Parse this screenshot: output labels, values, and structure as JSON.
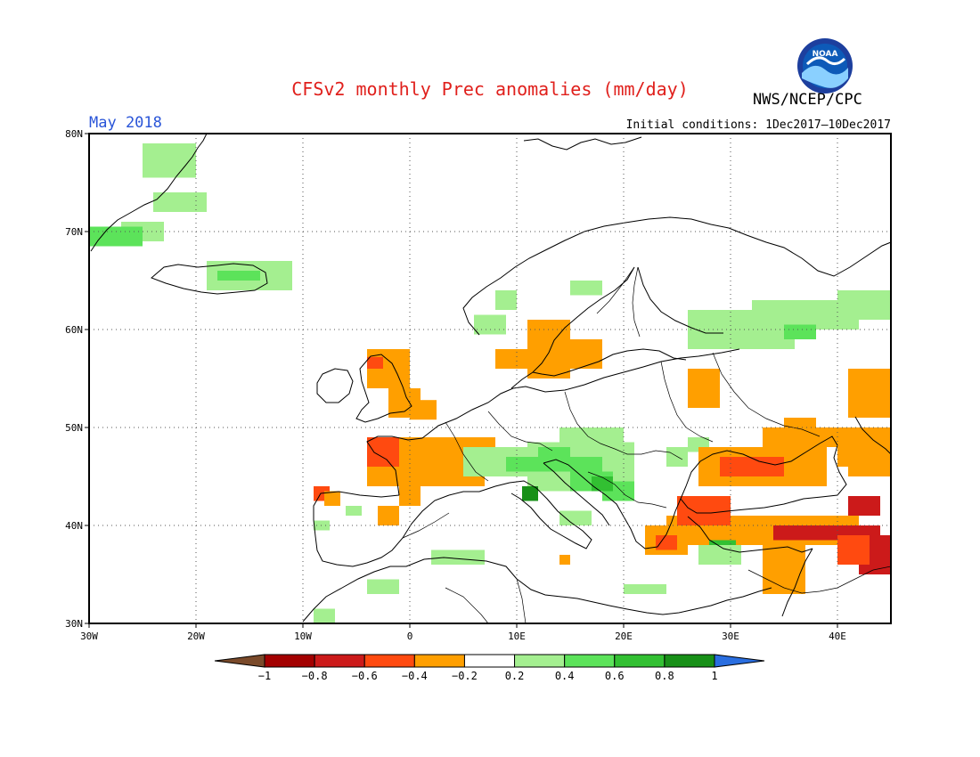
{
  "header": {
    "title": "CFSv2 monthly Prec anomalies (mm/day)",
    "agency": "NWS/NCEP/CPC",
    "period": "May 2018",
    "initial_conditions": "Initial conditions: 1Dec2017–10Dec2017",
    "logo_text": "NOAA"
  },
  "map": {
    "lon_range": [
      -30,
      45
    ],
    "lat_range": [
      30,
      80
    ],
    "lon_ticks": [
      {
        "v": -30,
        "label": "30W"
      },
      {
        "v": -20,
        "label": "20W"
      },
      {
        "v": -10,
        "label": "10W"
      },
      {
        "v": 0,
        "label": "0"
      },
      {
        "v": 10,
        "label": "10E"
      },
      {
        "v": 20,
        "label": "20E"
      },
      {
        "v": 30,
        "label": "30E"
      },
      {
        "v": 40,
        "label": "40E"
      }
    ],
    "lat_ticks": [
      {
        "v": 30,
        "label": "30N"
      },
      {
        "v": 40,
        "label": "40N"
      },
      {
        "v": 50,
        "label": "50N"
      },
      {
        "v": 60,
        "label": "60N"
      },
      {
        "v": 70,
        "label": "70N"
      },
      {
        "v": 80,
        "label": "80N"
      }
    ],
    "gridlines": true
  },
  "colorbar": {
    "colors": [
      "#7a4a2a",
      "#a30000",
      "#cc1a1a",
      "#ff4a10",
      "#ff9f00",
      "#ffffff",
      "#a4ef90",
      "#5ce35a",
      "#32c032",
      "#189018",
      "#2a6ee0"
    ],
    "labels": [
      "−1",
      "−0.8",
      "−0.6",
      "−0.4",
      "−0.2",
      "0.2",
      "0.4",
      "0.6",
      "0.8",
      "1"
    ]
  },
  "chart_data": {
    "type": "heatmap",
    "title": "CFSv2 monthly Prec anomalies (mm/day)",
    "cell_units": "degrees lon/lat, 2.5 x 2",
    "anomaly_regions": [
      {
        "name": "greenland-e",
        "level": 0.3,
        "cells": [
          [
            -25,
            75.5,
            5,
            3.5
          ],
          [
            -24,
            72,
            5,
            2
          ],
          [
            -27,
            69,
            4,
            2
          ]
        ]
      },
      {
        "name": "greenland-sw",
        "level": 0.5,
        "cells": [
          [
            -30,
            68.5,
            5,
            2
          ]
        ]
      },
      {
        "name": "iceland",
        "level": 0.3,
        "cells": [
          [
            -19,
            64,
            8,
            3
          ]
        ]
      },
      {
        "name": "iceland-core",
        "level": 0.5,
        "cells": [
          [
            -18,
            65,
            4,
            1
          ]
        ]
      },
      {
        "name": "norway",
        "level": 0.3,
        "cells": [
          [
            6,
            59.5,
            3,
            2
          ],
          [
            8,
            62,
            2,
            2
          ]
        ]
      },
      {
        "name": "sweden-n",
        "level": 0.3,
        "cells": [
          [
            15,
            63.5,
            3,
            1.5
          ]
        ]
      },
      {
        "name": "scandinavia-s",
        "level": -0.3,
        "cells": [
          [
            11,
            55,
            4,
            6
          ],
          [
            14,
            56,
            4,
            3
          ],
          [
            8,
            56,
            4,
            2
          ]
        ]
      },
      {
        "name": "scotland",
        "level": -0.3,
        "cells": [
          [
            -4,
            54,
            4,
            4
          ],
          [
            -2,
            51,
            3,
            3
          ]
        ]
      },
      {
        "name": "scotland-core",
        "level": -0.5,
        "cells": [
          [
            -4,
            56,
            1.5,
            1.2
          ]
        ]
      },
      {
        "name": "northsea",
        "level": -0.3,
        "cells": [
          [
            0,
            50.8,
            2.5,
            2
          ]
        ]
      },
      {
        "name": "france-w",
        "level": -0.3,
        "cells": [
          [
            -4,
            44,
            8,
            5
          ],
          [
            -1,
            42,
            2,
            2
          ],
          [
            -3,
            40,
            2,
            2
          ]
        ]
      },
      {
        "name": "brittany",
        "level": -0.5,
        "cells": [
          [
            -4,
            46,
            3,
            3
          ]
        ]
      },
      {
        "name": "france-c",
        "level": -0.3,
        "cells": [
          [
            4,
            44,
            3,
            5
          ],
          [
            6,
            46,
            2,
            3
          ]
        ]
      },
      {
        "name": "iberia-nw",
        "level": -0.5,
        "cells": [
          [
            -9,
            42.5,
            1.5,
            1.5
          ]
        ]
      },
      {
        "name": "iberia-n",
        "level": -0.3,
        "cells": [
          [
            -8,
            42,
            1.5,
            1.5
          ]
        ]
      },
      {
        "name": "iberia-small",
        "level": 0.3,
        "cells": [
          [
            -6,
            41,
            1.5,
            1
          ],
          [
            -9,
            39.5,
            1.5,
            1
          ]
        ]
      },
      {
        "name": "alps",
        "level": 0.3,
        "cells": [
          [
            5,
            45,
            6,
            3
          ],
          [
            11,
            43.5,
            10,
            5
          ],
          [
            14,
            48,
            6,
            2
          ]
        ]
      },
      {
        "name": "alps-core",
        "level": 0.5,
        "cells": [
          [
            9,
            45.5,
            9,
            1.5
          ],
          [
            12,
            46.5,
            3,
            1.5
          ]
        ]
      },
      {
        "name": "balkans",
        "level": 0.5,
        "cells": [
          [
            15,
            43.5,
            4,
            2
          ],
          [
            18,
            42.5,
            3,
            2
          ]
        ]
      },
      {
        "name": "balkans-core",
        "level": 0.7,
        "cells": [
          [
            17,
            43.5,
            2,
            1.5
          ]
        ]
      },
      {
        "name": "italy-blob",
        "level": 0.9,
        "cells": [
          [
            10.5,
            42.5,
            1.5,
            1.5
          ]
        ]
      },
      {
        "name": "italy-small",
        "level": 0.3,
        "cells": [
          [
            14,
            40,
            3,
            1.5
          ],
          [
            24,
            46,
            2,
            2
          ],
          [
            26,
            47.5,
            2,
            1.5
          ]
        ]
      },
      {
        "name": "n-africa",
        "level": 0.3,
        "cells": [
          [
            2,
            36,
            5,
            1.5
          ],
          [
            -4,
            33,
            3,
            1.5
          ],
          [
            -9,
            30,
            2,
            1.5
          ]
        ]
      },
      {
        "name": "blacksea-n",
        "level": -0.3,
        "cells": [
          [
            27,
            44,
            12,
            4
          ],
          [
            33,
            48,
            10,
            2
          ],
          [
            35,
            50,
            3,
            1
          ]
        ]
      },
      {
        "name": "blacksea-core",
        "level": -0.5,
        "cells": [
          [
            29,
            45,
            6,
            2
          ]
        ]
      },
      {
        "name": "turkey",
        "level": -0.3,
        "cells": [
          [
            24,
            38,
            18,
            3
          ],
          [
            33,
            33,
            4,
            5
          ],
          [
            23,
            37,
            3,
            3
          ]
        ]
      },
      {
        "name": "turkey-core",
        "level": -0.7,
        "cells": [
          [
            34,
            38.5,
            10,
            1.5
          ],
          [
            41,
            41,
            3,
            2
          ]
        ]
      },
      {
        "name": "turkey-red",
        "level": -0.5,
        "cells": [
          [
            25,
            40,
            5,
            3
          ]
        ]
      },
      {
        "name": "caucasus",
        "level": -0.3,
        "cells": [
          [
            40,
            46,
            5,
            4
          ],
          [
            41,
            45,
            4,
            2
          ]
        ]
      },
      {
        "name": "anatolia-green",
        "level": 0.7,
        "cells": [
          [
            28,
            37,
            2.5,
            1.5
          ]
        ]
      },
      {
        "name": "anatolia-lt",
        "level": 0.3,
        "cells": [
          [
            27,
            36,
            4,
            2
          ],
          [
            20,
            33,
            4,
            1
          ]
        ]
      },
      {
        "name": "russia-n",
        "level": 0.3,
        "cells": [
          [
            26,
            58,
            10,
            4
          ],
          [
            32,
            60,
            10,
            3
          ],
          [
            40,
            61,
            5,
            3
          ]
        ]
      },
      {
        "name": "russia-core",
        "level": 0.5,
        "cells": [
          [
            35,
            59,
            3,
            1.5
          ]
        ]
      },
      {
        "name": "belarus",
        "level": -0.3,
        "cells": [
          [
            26,
            52,
            3,
            4
          ]
        ]
      },
      {
        "name": "ne-russia",
        "level": -0.3,
        "cells": [
          [
            41,
            51,
            4,
            5
          ]
        ]
      },
      {
        "name": "e-med",
        "level": -0.8,
        "cells": [
          [
            42,
            35,
            3,
            4
          ]
        ]
      },
      {
        "name": "e-med-2",
        "level": -0.5,
        "cells": [
          [
            40,
            36,
            3,
            3
          ]
        ]
      },
      {
        "name": "greece",
        "level": -0.3,
        "cells": [
          [
            22,
            37,
            3,
            3
          ]
        ]
      },
      {
        "name": "greece-red",
        "level": -0.5,
        "cells": [
          [
            23,
            37.5,
            2,
            1.5
          ]
        ]
      },
      {
        "name": "sardinia",
        "level": -0.3,
        "cells": [
          [
            14,
            36,
            1,
            1
          ]
        ]
      }
    ]
  }
}
